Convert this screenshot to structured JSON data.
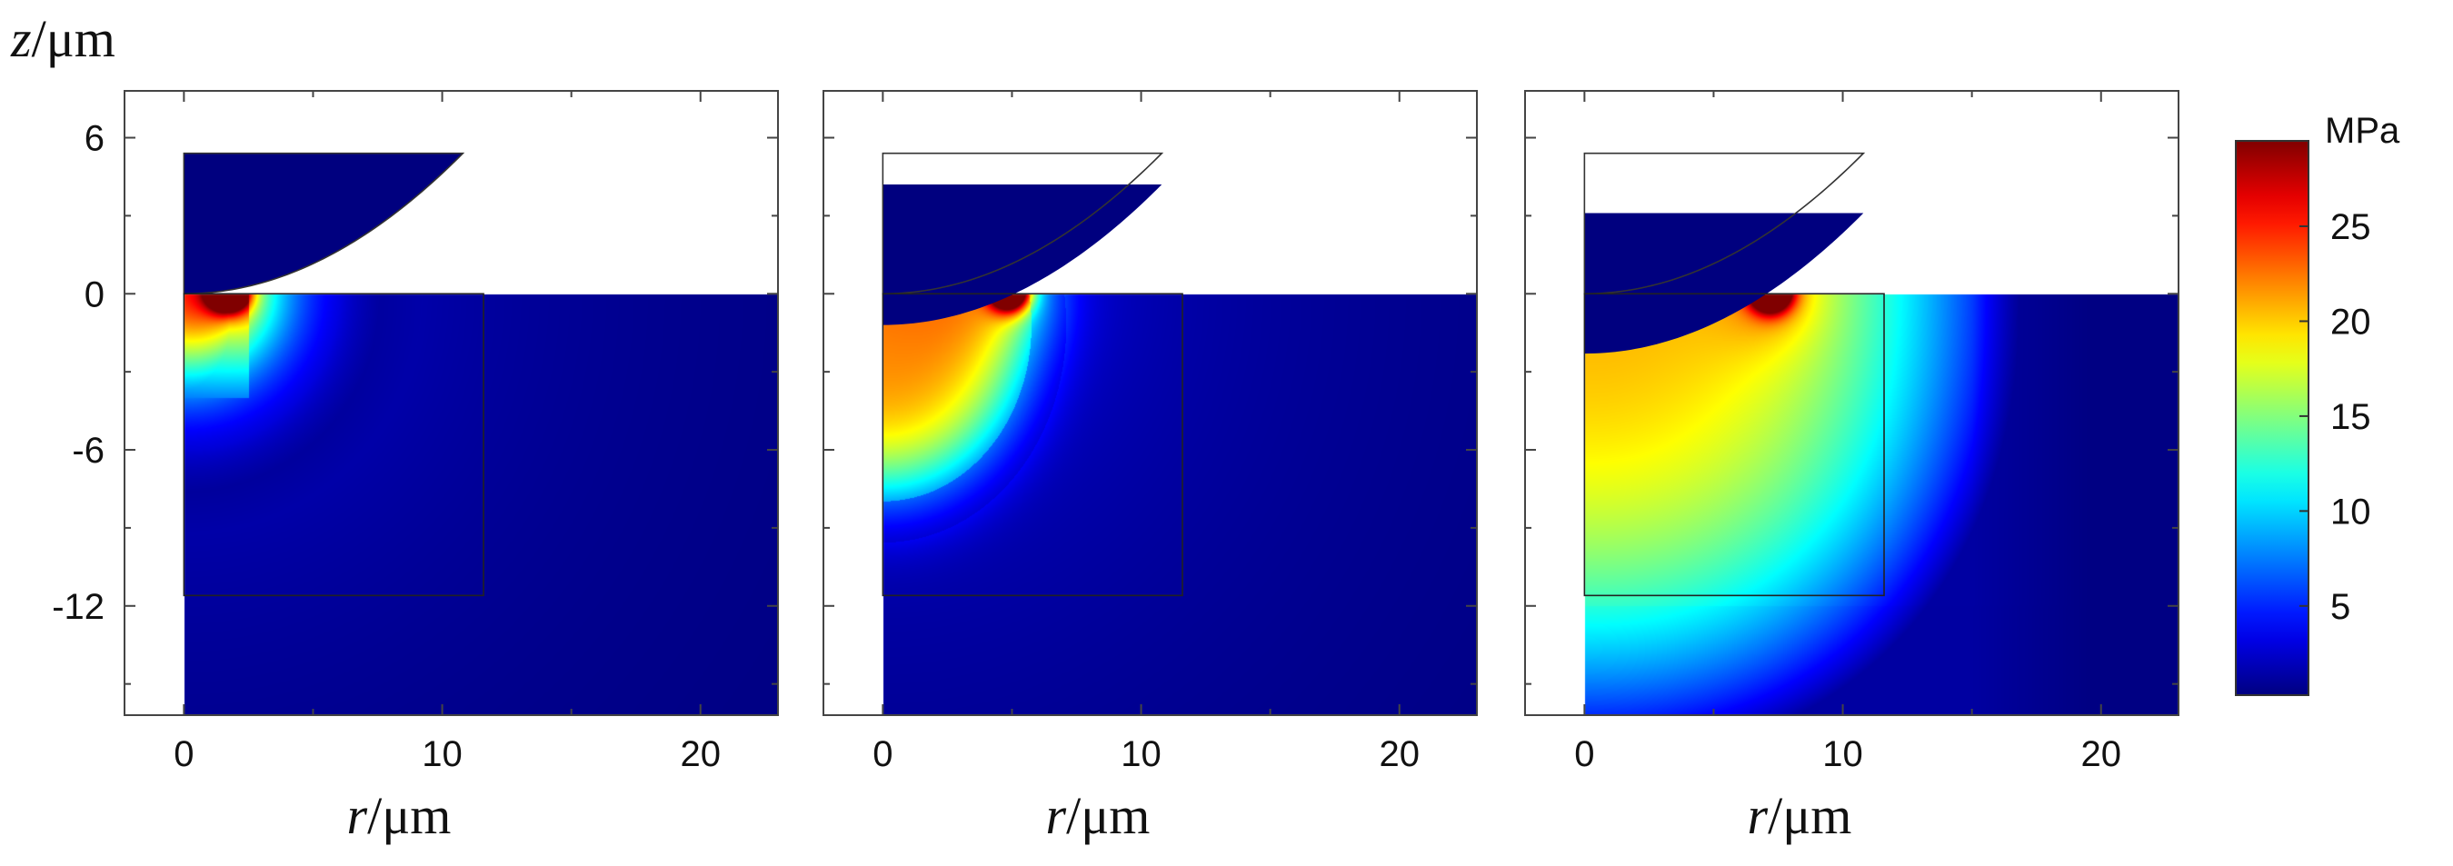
{
  "chart_data": {
    "type": "heatmap",
    "x_range": [
      -2.3,
      23
    ],
    "y_range": [
      -16.2,
      7.8
    ],
    "x_ticks": [
      0,
      10,
      20
    ],
    "y_ticks": [
      6,
      0,
      -6,
      -12
    ],
    "y_tick_labels": [
      "6",
      "0",
      "-6",
      "-12"
    ],
    "x_tick_labels": [
      "0",
      "10",
      "20"
    ],
    "xlabel": "r/μm",
    "ylabel": "z/μm",
    "colorbar": {
      "unit": "MPa",
      "range": [
        0.3,
        29.5
      ],
      "ticks": [
        5,
        10,
        15,
        20,
        25
      ],
      "tick_labels": [
        "5",
        "10",
        "15",
        "20",
        "25"
      ],
      "colormap": "jet"
    },
    "panels": [
      {
        "indenter_top_z": 5.4,
        "indenter_tip_z": 0,
        "contact_radius": 1.7,
        "peak_stress_r": 1.7,
        "peak_stress_MPa": 29,
        "inner_box": {
          "r_max": 11.6,
          "z_min": -11.6
        }
      },
      {
        "indenter_top_z": 4.2,
        "indenter_tip_z": -1.2,
        "contact_radius": 4.9,
        "peak_stress_r": 4.9,
        "peak_stress_MPa": 29,
        "inner_box": {
          "r_max": 11.6,
          "z_min": -11.6
        }
      },
      {
        "indenter_top_z": 3.1,
        "indenter_tip_z": -2.3,
        "contact_radius": 7.2,
        "peak_stress_r": 7.2,
        "peak_stress_MPa": 29,
        "inner_box": {
          "r_max": 11.6,
          "z_min": -11.6
        }
      }
    ]
  }
}
